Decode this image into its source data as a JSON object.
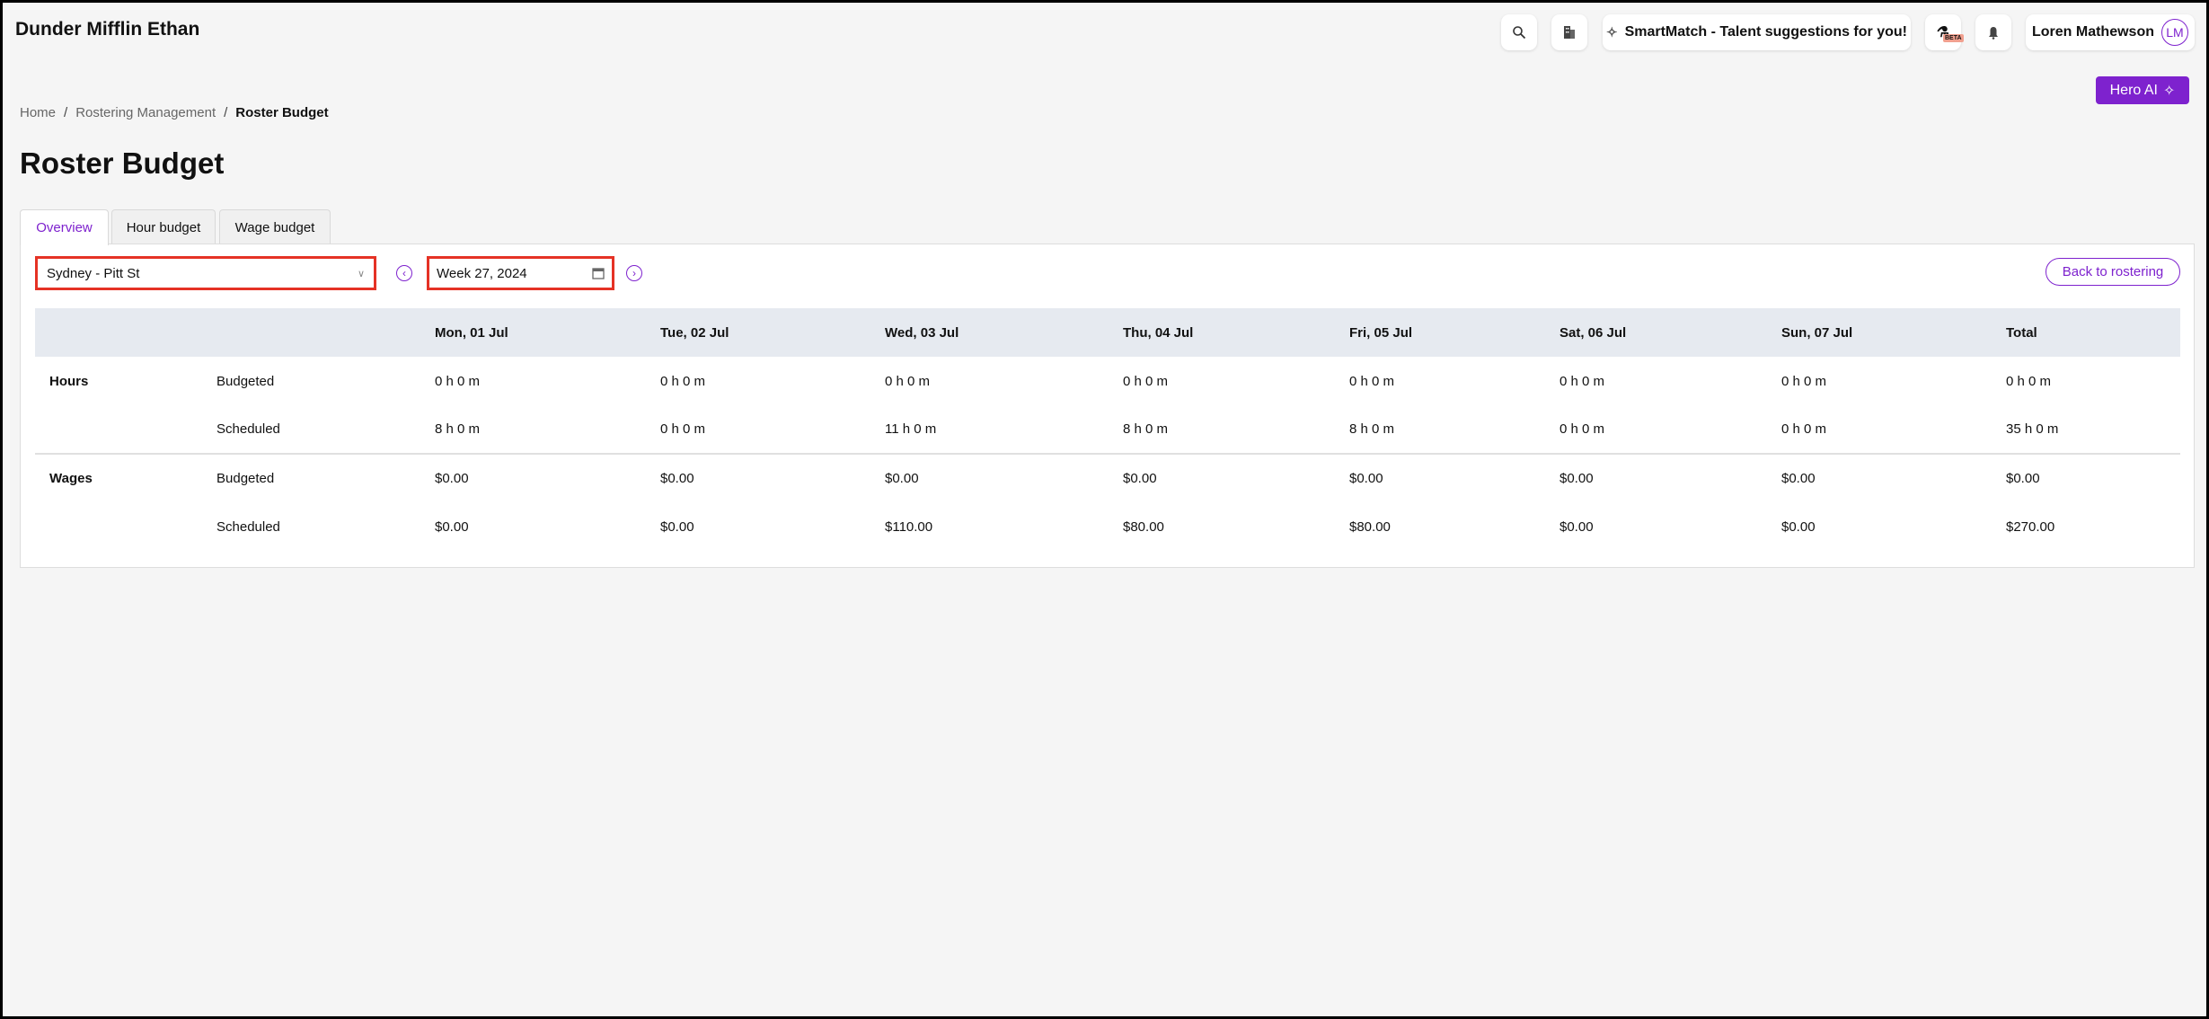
{
  "app": {
    "title": "Dunder Mifflin Ethan"
  },
  "header": {
    "smartmatch": "SmartMatch - Talent suggestions for you!",
    "beta": "BETA",
    "user_name": "Loren Mathewson",
    "user_initials": "LM",
    "hero_ai": "Hero AI"
  },
  "breadcrumb": [
    "Home",
    "Rostering Management",
    "Roster Budget"
  ],
  "page_title": "Roster Budget",
  "tabs": [
    {
      "label": "Overview",
      "active": true
    },
    {
      "label": "Hour budget"
    },
    {
      "label": "Wage budget"
    }
  ],
  "filters": {
    "location": "Sydney - Pitt St",
    "week": "Week 27, 2024",
    "back": "Back to rostering"
  },
  "colors": {
    "accent": "#7e22ce",
    "highlight": "#e53225",
    "header_bg": "#e6eaf0"
  },
  "table": {
    "columns": [
      "",
      "",
      "Mon, 01 Jul",
      "Tue, 02 Jul",
      "Wed, 03 Jul",
      "Thu, 04 Jul",
      "Fri, 05 Jul",
      "Sat, 06 Jul",
      "Sun, 07 Jul",
      "Total"
    ],
    "rows": [
      {
        "group": "Hours",
        "type": "Budgeted",
        "values": [
          "0 h 0 m",
          "0 h 0 m",
          "0 h 0 m",
          "0 h 0 m",
          "0 h 0 m",
          "0 h 0 m",
          "0 h 0 m",
          "0 h 0 m"
        ]
      },
      {
        "group": "",
        "type": "Scheduled",
        "values": [
          "8 h 0 m",
          "0 h 0 m",
          "11 h 0 m",
          "8 h 0 m",
          "8 h 0 m",
          "0 h 0 m",
          "0 h 0 m",
          "35 h 0 m"
        ]
      },
      {
        "group": "Wages",
        "type": "Budgeted",
        "values": [
          "$0.00",
          "$0.00",
          "$0.00",
          "$0.00",
          "$0.00",
          "$0.00",
          "$0.00",
          "$0.00"
        ]
      },
      {
        "group": "",
        "type": "Scheduled",
        "values": [
          "$0.00",
          "$0.00",
          "$110.00",
          "$80.00",
          "$80.00",
          "$0.00",
          "$0.00",
          "$270.00"
        ]
      }
    ]
  }
}
